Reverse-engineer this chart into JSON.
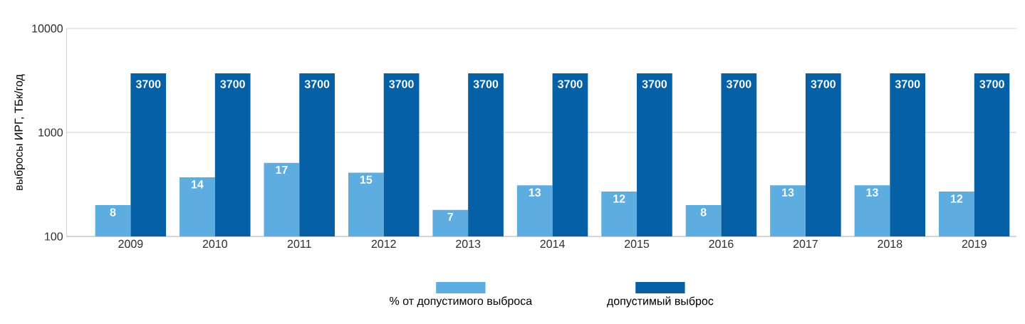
{
  "chart_data": {
    "type": "bar",
    "ylabel": "выбросы ИРГ, ТБк/год",
    "categories": [
      "2009",
      "2010",
      "2011",
      "2012",
      "2013",
      "2014",
      "2015",
      "2016",
      "2017",
      "2018",
      "2019"
    ],
    "series": [
      {
        "name": "% от допустимого выброса",
        "color": "#5dade0",
        "values": [
          200,
          370,
          510,
          410,
          180,
          310,
          270,
          200,
          310,
          310,
          270
        ]
      },
      {
        "name": "допустимый выброс",
        "color": "#0560a6",
        "values": [
          3700,
          3700,
          3700,
          3700,
          3700,
          3700,
          3700,
          3700,
          3700,
          3700,
          3700
        ],
        "value_labels": [
          "3700",
          "3700",
          "3700",
          "3700",
          "3700",
          "3700",
          "3700",
          "3700",
          "3700",
          "3700",
          "3700"
        ]
      }
    ],
    "annotations": [
      {
        "text": "8",
        "x": "2009",
        "y": 200
      },
      {
        "text": "14",
        "x": "2010",
        "y": 370
      },
      {
        "text": "17",
        "x": "2011",
        "y": 510
      },
      {
        "text": "15",
        "x": "2012",
        "y": 410
      },
      {
        "text": "7",
        "x": "2013",
        "y": 180
      },
      {
        "text": "13",
        "x": "2014",
        "y": 310
      },
      {
        "text": "12",
        "x": "2015",
        "y": 270
      },
      {
        "text": "8",
        "x": "2016",
        "y": 200
      },
      {
        "text": "13",
        "x": "2017",
        "y": 310
      },
      {
        "text": "13",
        "x": "2018",
        "y": 310
      },
      {
        "text": "12",
        "x": "2019",
        "y": 270
      }
    ],
    "log": true,
    "ylim": [
      100,
      10000
    ],
    "yticks": [
      100,
      1000,
      10000
    ],
    "grid": "y",
    "legend": "bottom"
  }
}
